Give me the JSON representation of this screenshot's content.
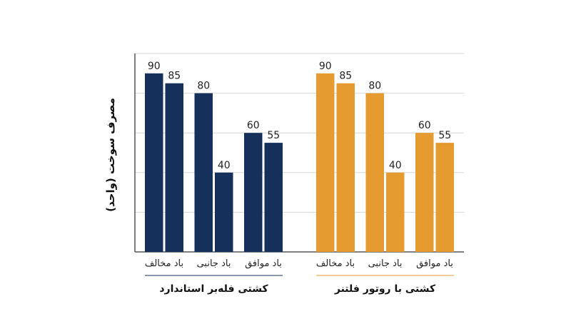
{
  "chart_data": {
    "type": "bar",
    "ylabel": "مصرف سوخت (واحد)",
    "ylim": [
      0,
      100
    ],
    "grid": true,
    "groups": [
      {
        "label": "کشتی فله‌بر استاندارد",
        "color": "#15305a",
        "categories": [
          {
            "label": "باد مخالف",
            "values": [
              90,
              85
            ]
          },
          {
            "label": "باد جانبی",
            "values": [
              80,
              40
            ]
          },
          {
            "label": "باد موافق",
            "values": [
              60,
              55
            ]
          }
        ]
      },
      {
        "label": "کشتی با روتور فلتنر",
        "color": "#e59b2f",
        "categories": [
          {
            "label": "باد مخالف",
            "values": [
              90,
              85
            ]
          },
          {
            "label": "باد جانبی",
            "values": [
              80,
              40
            ]
          },
          {
            "label": "باد موافق",
            "values": [
              60,
              55
            ]
          }
        ]
      }
    ]
  }
}
